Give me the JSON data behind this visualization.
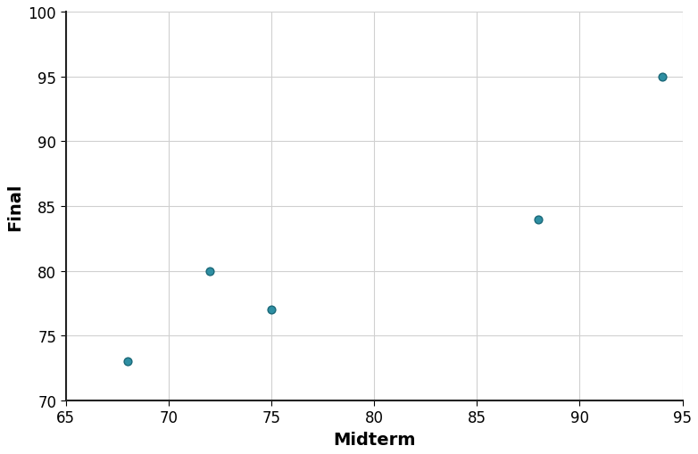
{
  "x": [
    68,
    72,
    75,
    88,
    94
  ],
  "y": [
    73,
    80,
    77,
    84,
    95
  ],
  "xlabel": "Midterm",
  "ylabel": "Final",
  "xlim": [
    65,
    95
  ],
  "ylim": [
    70,
    100
  ],
  "xticks": [
    65,
    70,
    75,
    80,
    85,
    90,
    95
  ],
  "yticks": [
    70,
    75,
    80,
    85,
    90,
    95,
    100
  ],
  "marker_color": "#2e8fa3",
  "marker_edge_color": "#1a6878",
  "marker_size": 40,
  "marker_style": "o",
  "grid_color": "#d0d0d0",
  "background_color": "#ffffff",
  "xlabel_fontsize": 14,
  "ylabel_fontsize": 14,
  "tick_fontsize": 12,
  "label_fontweight": "bold",
  "spine_color": "#222222",
  "spine_linewidth": 1.5
}
